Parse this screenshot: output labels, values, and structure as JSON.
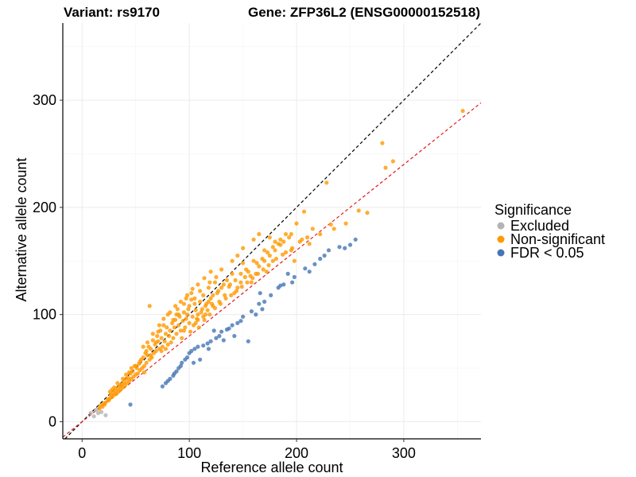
{
  "chart_data": {
    "type": "scatter",
    "title_left": "Variant: rs9170",
    "title_right": "Gene: ZFP36L2 (ENSG00000152518)",
    "xlabel": "Reference allele count",
    "ylabel": "Alternative allele count",
    "xlim": [
      -18,
      372
    ],
    "ylim": [
      -16,
      372
    ],
    "x_ticks": [
      0,
      100,
      200,
      300
    ],
    "y_ticks": [
      0,
      100,
      200,
      300
    ],
    "grid": true,
    "legend": {
      "title": "Significance",
      "position": "right",
      "entries": [
        {
          "label": "Excluded",
          "color": "#b3b3b3"
        },
        {
          "label": "Non-significant",
          "color": "#ff9900"
        },
        {
          "label": "FDR < 0.05",
          "color": "#4575b4"
        }
      ]
    },
    "reference_lines": [
      {
        "name": "identity",
        "slope": 1.0,
        "intercept": 0,
        "color": "#000000",
        "style": "dashed"
      },
      {
        "name": "fit",
        "slope": 0.8,
        "intercept": 0,
        "color": "#e41a1c",
        "style": "dashed"
      }
    ],
    "series": [
      {
        "name": "Excluded",
        "color": "#b3b3b3",
        "points": [
          [
            8,
            8
          ],
          [
            11,
            5
          ],
          [
            15,
            8
          ],
          [
            22,
            6
          ],
          [
            13,
            11
          ],
          [
            18,
            9
          ]
        ]
      },
      {
        "name": "Non-significant",
        "color": "#ff9900",
        "points": [
          [
            355,
            290
          ],
          [
            280,
            260
          ],
          [
            290,
            243
          ],
          [
            283,
            237
          ],
          [
            228,
            223
          ],
          [
            258,
            197
          ],
          [
            266,
            195
          ],
          [
            246,
            185
          ],
          [
            235,
            180
          ],
          [
            222,
            175
          ],
          [
            232,
            184
          ],
          [
            207,
            196
          ],
          [
            215,
            180
          ],
          [
            212,
            166
          ],
          [
            200,
            185
          ],
          [
            205,
            170
          ],
          [
            195,
            160
          ],
          [
            190,
            175
          ],
          [
            198,
            150
          ],
          [
            185,
            165
          ],
          [
            180,
            168
          ],
          [
            175,
            155
          ],
          [
            178,
            150
          ],
          [
            170,
            160
          ],
          [
            165,
            145
          ],
          [
            172,
            140
          ],
          [
            160,
            150
          ],
          [
            162,
            138
          ],
          [
            155,
            140
          ],
          [
            150,
            148
          ],
          [
            158,
            130
          ],
          [
            152,
            135
          ],
          [
            148,
            130
          ],
          [
            145,
            125
          ],
          [
            140,
            138
          ],
          [
            142,
            120
          ],
          [
            138,
            128
          ],
          [
            135,
            132
          ],
          [
            133,
            118
          ],
          [
            130,
            125
          ],
          [
            128,
            112
          ],
          [
            126,
            120
          ],
          [
            124,
            130
          ],
          [
            122,
            108
          ],
          [
            120,
            115
          ],
          [
            118,
            125
          ],
          [
            116,
            110
          ],
          [
            115,
            100
          ],
          [
            113,
            118
          ],
          [
            112,
            105
          ],
          [
            110,
            112
          ],
          [
            108,
            95
          ],
          [
            106,
            104
          ],
          [
            105,
            110
          ],
          [
            103,
            98
          ],
          [
            102,
            120
          ],
          [
            100,
            92
          ],
          [
            99,
            105
          ],
          [
            98,
            100
          ],
          [
            96,
            88
          ],
          [
            95,
            102
          ],
          [
            94,
            94
          ],
          [
            92,
            85
          ],
          [
            91,
            98
          ],
          [
            90,
            90
          ],
          [
            88,
            82
          ],
          [
            87,
            95
          ],
          [
            86,
            88
          ],
          [
            85,
            78
          ],
          [
            84,
            92
          ],
          [
            82,
            85
          ],
          [
            81,
            80
          ],
          [
            80,
            72
          ],
          [
            79,
            88
          ],
          [
            78,
            82
          ],
          [
            77,
            75
          ],
          [
            76,
            90
          ],
          [
            75,
            70
          ],
          [
            74,
            78
          ],
          [
            73,
            85
          ],
          [
            72,
            68
          ],
          [
            71,
            75
          ],
          [
            70,
            80
          ],
          [
            69,
            66
          ],
          [
            68,
            72
          ],
          [
            67,
            64
          ],
          [
            66,
            76
          ],
          [
            65,
            60
          ],
          [
            64,
            68
          ],
          [
            63,
            58
          ],
          [
            62,
            70
          ],
          [
            61,
            62
          ],
          [
            60,
            55
          ],
          [
            59,
            64
          ],
          [
            58,
            52
          ],
          [
            57,
            60
          ],
          [
            56,
            50
          ],
          [
            55,
            58
          ],
          [
            54,
            48
          ],
          [
            53,
            54
          ],
          [
            52,
            45
          ],
          [
            51,
            50
          ],
          [
            50,
            44
          ],
          [
            49,
            52
          ],
          [
            48,
            42
          ],
          [
            47,
            47
          ],
          [
            46,
            40
          ],
          [
            45,
            45
          ],
          [
            44,
            38
          ],
          [
            43,
            41
          ],
          [
            42,
            36
          ],
          [
            41,
            40
          ],
          [
            40,
            34
          ],
          [
            39,
            37
          ],
          [
            38,
            32
          ],
          [
            37,
            35
          ],
          [
            36,
            30
          ],
          [
            35,
            33
          ],
          [
            34,
            28
          ],
          [
            33,
            31
          ],
          [
            32,
            26
          ],
          [
            31,
            29
          ],
          [
            30,
            25
          ],
          [
            29,
            27
          ],
          [
            28,
            23
          ],
          [
            27,
            25
          ],
          [
            26,
            22
          ],
          [
            25,
            20
          ],
          [
            24,
            21
          ],
          [
            22,
            18
          ],
          [
            21,
            16
          ],
          [
            20,
            17
          ],
          [
            19,
            14
          ],
          [
            17,
            15
          ],
          [
            16,
            12
          ],
          [
            63,
            108
          ],
          [
            72,
            90
          ],
          [
            105,
            115
          ],
          [
            110,
            122
          ],
          [
            95,
            110
          ],
          [
            88,
            100
          ],
          [
            120,
            140
          ],
          [
            125,
            135
          ],
          [
            130,
            142
          ],
          [
            140,
            150
          ],
          [
            145,
            155
          ],
          [
            150,
            162
          ],
          [
            160,
            170
          ],
          [
            165,
            175
          ],
          [
            170,
            150
          ],
          [
            175,
            172
          ],
          [
            180,
            160
          ],
          [
            185,
            170
          ],
          [
            190,
            158
          ],
          [
            195,
            175
          ],
          [
            108,
            100
          ],
          [
            115,
            108
          ],
          [
            118,
            112
          ],
          [
            122,
            118
          ],
          [
            127,
            122
          ],
          [
            132,
            128
          ],
          [
            137,
            126
          ],
          [
            143,
            132
          ],
          [
            148,
            138
          ],
          [
            153,
            142
          ],
          [
            157,
            136
          ],
          [
            163,
            148
          ],
          [
            168,
            152
          ],
          [
            173,
            158
          ],
          [
            178,
            163
          ],
          [
            183,
            166
          ],
          [
            188,
            168
          ],
          [
            193,
            172
          ],
          [
            85,
            95
          ],
          [
            90,
            100
          ],
          [
            95,
            85
          ],
          [
            100,
            108
          ],
          [
            104,
            90
          ],
          [
            107,
            96
          ],
          [
            111,
            102
          ],
          [
            114,
            95
          ],
          [
            117,
            104
          ],
          [
            121,
            110
          ],
          [
            83,
            74
          ],
          [
            78,
            68
          ],
          [
            74,
            66
          ],
          [
            69,
            74
          ],
          [
            64,
            62
          ],
          [
            60,
            66
          ],
          [
            58,
            46
          ],
          [
            54,
            56
          ],
          [
            50,
            52
          ],
          [
            46,
            50
          ],
          [
            44,
            46
          ],
          [
            41,
            44
          ],
          [
            38,
            40
          ],
          [
            36,
            34
          ],
          [
            33,
            36
          ],
          [
            30,
            32
          ],
          [
            28,
            30
          ],
          [
            26,
            28
          ],
          [
            93,
            78
          ],
          [
            97,
            96
          ],
          [
            101,
            84
          ],
          [
            106,
            92
          ],
          [
            109,
            88
          ],
          [
            113,
            98
          ],
          [
            119,
            100
          ],
          [
            124,
            106
          ],
          [
            129,
            110
          ],
          [
            134,
            115
          ],
          [
            139,
            118
          ],
          [
            144,
            122
          ],
          [
            149,
            126
          ],
          [
            154,
            130
          ],
          [
            159,
            134
          ],
          [
            164,
            138
          ],
          [
            169,
            142
          ],
          [
            174,
            146
          ],
          [
            181,
            152
          ],
          [
            187,
            156
          ],
          [
            196,
            162
          ],
          [
            203,
            168
          ],
          [
            210,
            172
          ],
          [
            76,
            96
          ],
          [
            82,
            102
          ],
          [
            87,
            108
          ],
          [
            92,
            112
          ],
          [
            98,
            118
          ],
          [
            103,
            124
          ],
          [
            108,
            128
          ],
          [
            114,
            134
          ],
          [
            119,
            130
          ],
          [
            97,
            115
          ],
          [
            102,
            114
          ],
          [
            89,
            105
          ],
          [
            80,
            100
          ],
          [
            71,
            84
          ],
          [
            66,
            82
          ],
          [
            61,
            74
          ],
          [
            57,
            70
          ]
        ]
      },
      {
        "name": "FDR < 0.05",
        "color": "#4575b4",
        "points": [
          [
            255,
            170
          ],
          [
            250,
            165
          ],
          [
            240,
            163
          ],
          [
            230,
            160
          ],
          [
            222,
            152
          ],
          [
            217,
            147
          ],
          [
            208,
            143
          ],
          [
            212,
            140
          ],
          [
            198,
            135
          ],
          [
            196,
            130
          ],
          [
            188,
            128
          ],
          [
            185,
            127
          ],
          [
            176,
            118
          ],
          [
            170,
            112
          ],
          [
            168,
            105
          ],
          [
            165,
            110
          ],
          [
            162,
            100
          ],
          [
            158,
            103
          ],
          [
            150,
            98
          ],
          [
            148,
            94
          ],
          [
            145,
            92
          ],
          [
            140,
            90
          ],
          [
            137,
            87
          ],
          [
            135,
            86
          ],
          [
            130,
            84
          ],
          [
            128,
            80
          ],
          [
            125,
            78
          ],
          [
            120,
            75
          ],
          [
            117,
            73
          ],
          [
            113,
            71
          ],
          [
            108,
            70
          ],
          [
            105,
            68
          ],
          [
            102,
            66
          ],
          [
            100,
            64
          ],
          [
            98,
            60
          ],
          [
            96,
            58
          ],
          [
            93,
            55
          ],
          [
            92,
            52
          ],
          [
            90,
            50
          ],
          [
            88,
            47
          ],
          [
            86,
            45
          ],
          [
            85,
            43
          ],
          [
            82,
            40
          ],
          [
            80,
            38
          ],
          [
            78,
            36
          ],
          [
            75,
            33
          ],
          [
            45,
            16
          ],
          [
            155,
            75
          ],
          [
            142,
            80
          ],
          [
            132,
            76
          ],
          [
            118,
            68
          ],
          [
            110,
            58
          ],
          [
            104,
            55
          ],
          [
            123,
            85
          ],
          [
            166,
            120
          ],
          [
            183,
            125
          ],
          [
            192,
            138
          ],
          [
            226,
            155
          ],
          [
            245,
            162
          ]
        ]
      }
    ]
  }
}
